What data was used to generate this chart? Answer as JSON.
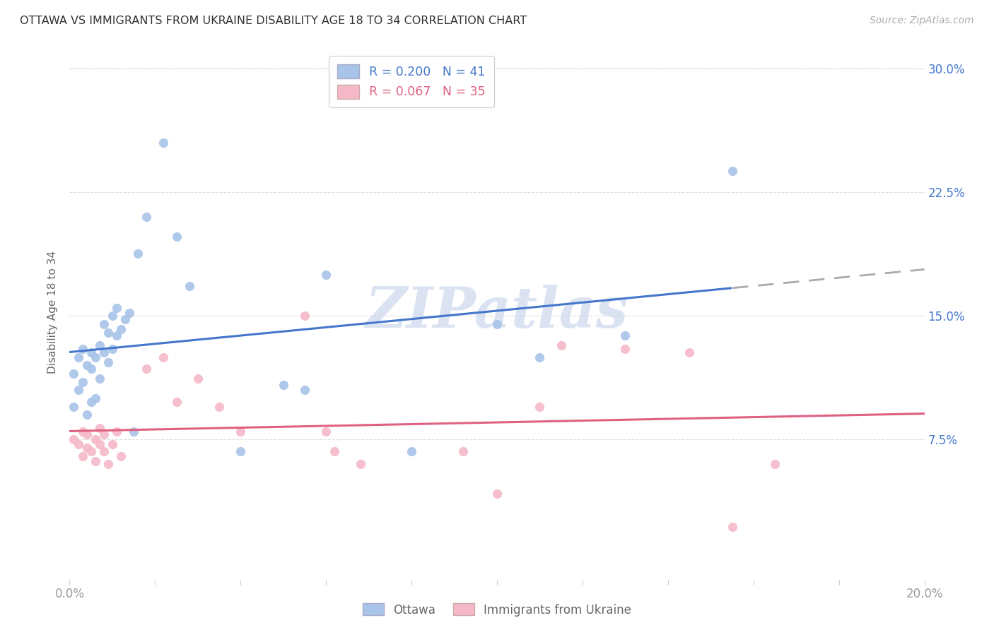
{
  "title": "OTTAWA VS IMMIGRANTS FROM UKRAINE DISABILITY AGE 18 TO 34 CORRELATION CHART",
  "source": "Source: ZipAtlas.com",
  "ylabel": "Disability Age 18 to 34",
  "xlim": [
    0.0,
    0.2
  ],
  "ylim": [
    -0.01,
    0.315
  ],
  "xticks": [
    0.0,
    0.02,
    0.04,
    0.06,
    0.08,
    0.1,
    0.12,
    0.14,
    0.16,
    0.18,
    0.2
  ],
  "yticks": [
    0.075,
    0.15,
    0.225,
    0.3
  ],
  "ytick_labels": [
    "7.5%",
    "15.0%",
    "22.5%",
    "30.0%"
  ],
  "ottawa_R": 0.2,
  "ottawa_N": 41,
  "ukraine_R": 0.067,
  "ukraine_N": 35,
  "ottawa_color": "#a8c4e8",
  "ukraine_color": "#f5b8c8",
  "ottawa_line_color": "#4477cc",
  "ukraine_line_color": "#e06080",
  "ottawa_x": [
    0.001,
    0.001,
    0.002,
    0.002,
    0.003,
    0.003,
    0.004,
    0.004,
    0.005,
    0.005,
    0.005,
    0.006,
    0.006,
    0.007,
    0.007,
    0.008,
    0.008,
    0.009,
    0.009,
    0.01,
    0.01,
    0.011,
    0.011,
    0.012,
    0.013,
    0.014,
    0.015,
    0.016,
    0.018,
    0.022,
    0.025,
    0.028,
    0.04,
    0.05,
    0.055,
    0.06,
    0.08,
    0.1,
    0.11,
    0.13,
    0.155
  ],
  "ottawa_y": [
    0.115,
    0.095,
    0.125,
    0.105,
    0.13,
    0.11,
    0.12,
    0.09,
    0.128,
    0.118,
    0.098,
    0.125,
    0.1,
    0.132,
    0.112,
    0.145,
    0.128,
    0.14,
    0.122,
    0.15,
    0.13,
    0.155,
    0.138,
    0.142,
    0.148,
    0.152,
    0.08,
    0.188,
    0.21,
    0.255,
    0.198,
    0.168,
    0.068,
    0.108,
    0.105,
    0.175,
    0.068,
    0.145,
    0.125,
    0.138,
    0.238
  ],
  "ukraine_x": [
    0.001,
    0.002,
    0.003,
    0.003,
    0.004,
    0.004,
    0.005,
    0.006,
    0.006,
    0.007,
    0.007,
    0.008,
    0.008,
    0.009,
    0.01,
    0.011,
    0.012,
    0.018,
    0.022,
    0.025,
    0.03,
    0.035,
    0.04,
    0.055,
    0.06,
    0.062,
    0.068,
    0.092,
    0.1,
    0.11,
    0.115,
    0.13,
    0.145,
    0.155,
    0.165
  ],
  "ukraine_y": [
    0.075,
    0.072,
    0.065,
    0.08,
    0.07,
    0.078,
    0.068,
    0.062,
    0.075,
    0.072,
    0.082,
    0.068,
    0.078,
    0.06,
    0.072,
    0.08,
    0.065,
    0.118,
    0.125,
    0.098,
    0.112,
    0.095,
    0.08,
    0.15,
    0.08,
    0.068,
    0.06,
    0.068,
    0.042,
    0.095,
    0.132,
    0.13,
    0.128,
    0.022,
    0.06
  ],
  "background_color": "#ffffff",
  "grid_color": "#dddddd",
  "title_color": "#333333",
  "axis_label_color": "#666666",
  "tick_label_color": "#999999",
  "watermark_color": "#ccd8ee"
}
